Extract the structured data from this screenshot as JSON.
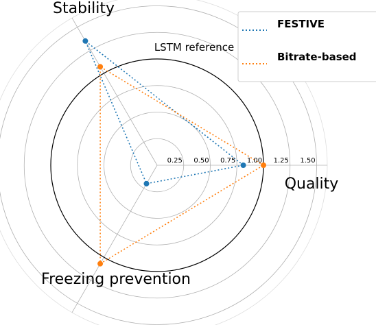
{
  "chart_data": {
    "type": "radar",
    "axes": [
      "Quality",
      "Stability",
      "Freezing prevention"
    ],
    "radial_ticks": [
      "0.25",
      "0.50",
      "0.75",
      "1.00",
      "1.25",
      "1.50"
    ],
    "rlim": [
      0,
      1.6
    ],
    "reference": {
      "label": "LSTM reference",
      "value": 1.0
    },
    "series": [
      {
        "name": "FESTIVE",
        "color": "#1f77b4",
        "values": [
          0.81,
          1.35,
          0.2
        ]
      },
      {
        "name": "Bitrate-based",
        "color": "#ff7f0e",
        "values": [
          1.0,
          1.07,
          1.07
        ]
      }
    ],
    "legend_position": "top-right",
    "grid": true
  }
}
